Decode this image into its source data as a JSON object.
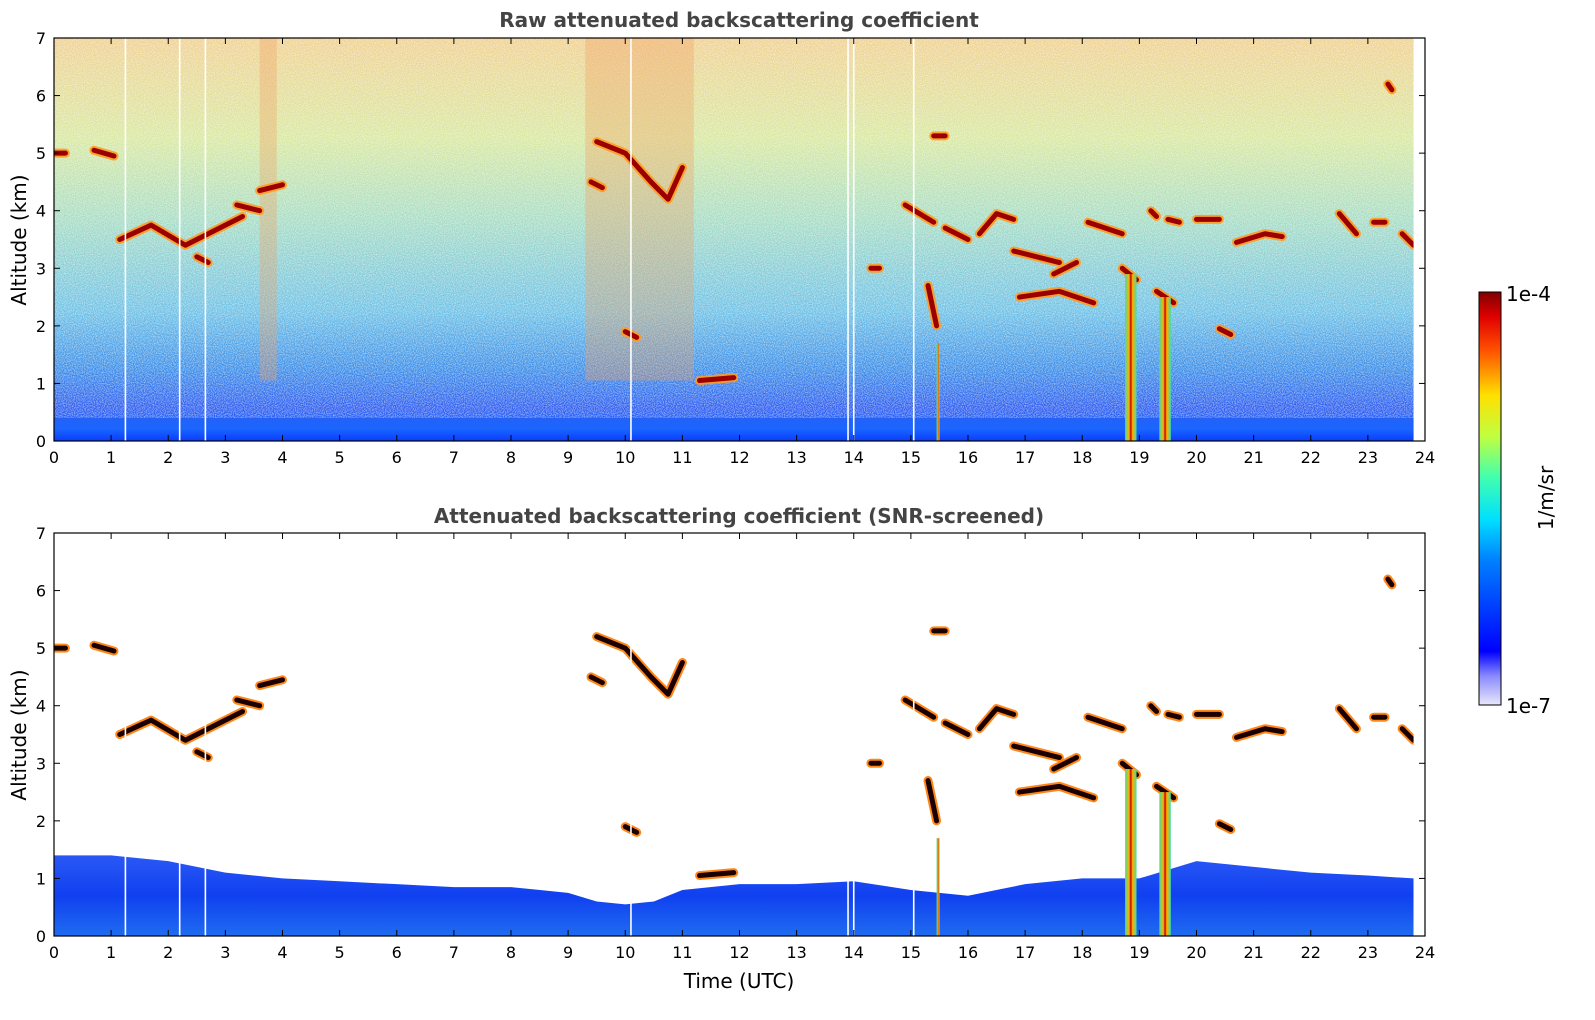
{
  "chart_data": [
    {
      "type": "heatmap",
      "title": "Raw attenuated backscattering coefficient",
      "xlabel": "",
      "ylabel": "Altitude (km)",
      "xlim": [
        0,
        24
      ],
      "ylim": [
        0,
        7
      ],
      "xticks": [
        0,
        1,
        2,
        3,
        4,
        5,
        6,
        7,
        8,
        9,
        10,
        11,
        12,
        13,
        14,
        15,
        16,
        17,
        18,
        19,
        20,
        21,
        22,
        23,
        24
      ],
      "yticks": [
        0,
        1,
        2,
        3,
        4,
        5,
        6,
        7
      ],
      "data_end_hour": 23.8,
      "boundary_layer_top_km": 0.4,
      "missing_profiles_utc": [
        1.25,
        2.2,
        2.65,
        10.1,
        13.9,
        14.0,
        15.05
      ],
      "enhanced_noise_periods_utc": [
        [
          3.6,
          3.9
        ],
        [
          9.3,
          11.2
        ]
      ],
      "cloud_layers": [
        {
          "x": [
            0,
            0.2
          ],
          "y": [
            5.0,
            5.0
          ]
        },
        {
          "x": [
            0.7,
            1.05
          ],
          "y": [
            5.05,
            4.95
          ]
        },
        {
          "x": [
            1.15,
            1.7,
            2.3,
            2.9,
            3.3
          ],
          "y": [
            3.5,
            3.75,
            3.4,
            3.7,
            3.9
          ]
        },
        {
          "x": [
            3.2,
            3.6
          ],
          "y": [
            4.1,
            4.0
          ]
        },
        {
          "x": [
            3.6,
            4.0
          ],
          "y": [
            4.35,
            4.45
          ]
        },
        {
          "x": [
            2.5,
            2.7
          ],
          "y": [
            3.2,
            3.1
          ]
        },
        {
          "x": [
            9.5,
            10.0,
            10.45,
            10.75,
            11.0
          ],
          "y": [
            5.2,
            5.0,
            4.5,
            4.2,
            4.75
          ]
        },
        {
          "x": [
            9.4,
            9.6
          ],
          "y": [
            4.5,
            4.4
          ]
        },
        {
          "x": [
            10.0,
            10.2
          ],
          "y": [
            1.9,
            1.8
          ]
        },
        {
          "x": [
            11.3,
            11.9
          ],
          "y": [
            1.05,
            1.1
          ]
        },
        {
          "x": [
            14.3,
            14.45
          ],
          "y": [
            3.0,
            3.0
          ]
        },
        {
          "x": [
            14.9,
            15.4
          ],
          "y": [
            4.1,
            3.8
          ]
        },
        {
          "x": [
            15.3,
            15.45
          ],
          "y": [
            2.7,
            2.0
          ]
        },
        {
          "x": [
            15.4,
            15.6
          ],
          "y": [
            5.3,
            5.3
          ]
        },
        {
          "x": [
            15.6,
            16.0
          ],
          "y": [
            3.7,
            3.5
          ]
        },
        {
          "x": [
            16.2,
            16.5,
            16.8
          ],
          "y": [
            3.6,
            3.95,
            3.85
          ]
        },
        {
          "x": [
            16.8,
            17.6
          ],
          "y": [
            3.3,
            3.1
          ]
        },
        {
          "x": [
            16.9,
            17.6,
            18.2
          ],
          "y": [
            2.5,
            2.6,
            2.4
          ]
        },
        {
          "x": [
            17.5,
            17.9
          ],
          "y": [
            2.9,
            3.1
          ]
        },
        {
          "x": [
            18.1,
            18.7
          ],
          "y": [
            3.8,
            3.6
          ]
        },
        {
          "x": [
            18.7,
            18.95
          ],
          "y": [
            3.0,
            2.8
          ]
        },
        {
          "x": [
            19.3,
            19.6
          ],
          "y": [
            2.6,
            2.4
          ]
        },
        {
          "x": [
            19.2,
            19.3
          ],
          "y": [
            4.0,
            3.9
          ]
        },
        {
          "x": [
            19.5,
            19.7
          ],
          "y": [
            3.85,
            3.8
          ]
        },
        {
          "x": [
            20.0,
            20.4
          ],
          "y": [
            3.85,
            3.85
          ]
        },
        {
          "x": [
            20.4,
            20.6
          ],
          "y": [
            1.95,
            1.85
          ]
        },
        {
          "x": [
            20.7,
            21.2,
            21.5
          ],
          "y": [
            3.45,
            3.6,
            3.55
          ]
        },
        {
          "x": [
            22.5,
            22.8
          ],
          "y": [
            3.95,
            3.6
          ]
        },
        {
          "x": [
            23.1,
            23.3
          ],
          "y": [
            3.8,
            3.8
          ]
        },
        {
          "x": [
            23.6,
            23.8
          ],
          "y": [
            3.6,
            3.4
          ]
        },
        {
          "x": [
            23.35,
            23.42
          ],
          "y": [
            6.2,
            6.1
          ]
        }
      ],
      "precipitation_shafts": [
        {
          "x_range": [
            18.75,
            18.95
          ],
          "top_km": 2.9
        },
        {
          "x_range": [
            19.35,
            19.55
          ],
          "top_km": 2.5
        },
        {
          "x_range": [
            15.45,
            15.5
          ],
          "top_km": 1.7
        }
      ]
    },
    {
      "type": "heatmap",
      "title": "Attenuated backscattering coefficient (SNR-screened)",
      "xlabel": "Time (UTC)",
      "ylabel": "Altitude (km)",
      "xlim": [
        0,
        24
      ],
      "ylim": [
        0,
        7
      ],
      "xticks": [
        0,
        1,
        2,
        3,
        4,
        5,
        6,
        7,
        8,
        9,
        10,
        11,
        12,
        13,
        14,
        15,
        16,
        17,
        18,
        19,
        20,
        21,
        22,
        23,
        24
      ],
      "yticks": [
        0,
        1,
        2,
        3,
        4,
        5,
        6,
        7
      ],
      "data_end_hour": 23.8,
      "snr_screened_boundary_top_km": {
        "x": [
          0,
          1,
          2,
          3,
          4,
          5,
          6,
          7,
          8,
          9,
          9.5,
          10,
          10.5,
          11,
          12,
          13,
          14,
          15,
          16,
          17,
          18,
          19,
          20,
          21,
          22,
          23,
          23.8
        ],
        "y": [
          1.4,
          1.4,
          1.3,
          1.1,
          1.0,
          0.95,
          0.9,
          0.85,
          0.85,
          0.75,
          0.6,
          0.55,
          0.6,
          0.8,
          0.9,
          0.9,
          0.95,
          0.8,
          0.7,
          0.9,
          1.0,
          1.0,
          1.3,
          1.2,
          1.1,
          1.05,
          1.0
        ]
      }
    }
  ],
  "colorbar": {
    "label": "1/m/sr",
    "max_label": "1e-4",
    "min_label": "1e-7",
    "colormap": "jet"
  }
}
